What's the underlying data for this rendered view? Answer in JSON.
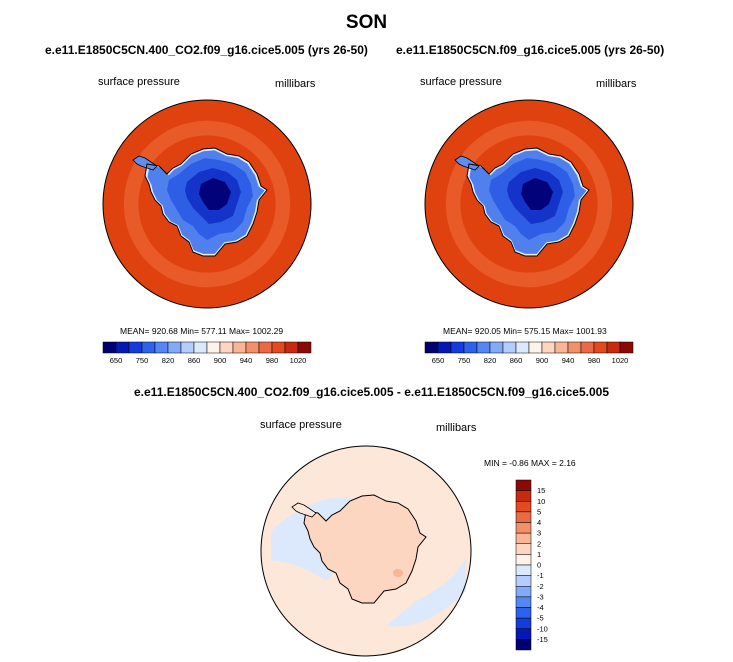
{
  "figure_title": "SON",
  "chart_data": [
    {
      "type": "heatmap",
      "projection": "south-polar-stereographic",
      "title": "e.e11.E1850C5CN.400_CO2.f09_g16.cice5.005 (yrs 26-50)",
      "left_label": "surface pressure",
      "right_label": "millibars",
      "stats_text": "MEAN= 920.68  Min= 577.11  Max= 1002.29",
      "mean": 920.68,
      "min": 577.11,
      "max": 1002.29,
      "colorbar": {
        "orientation": "horizontal",
        "tick_labels": [
          "650",
          "750",
          "820",
          "860",
          "900",
          "940",
          "980",
          "1020"
        ],
        "colors": [
          "#00006e",
          "#0518b4",
          "#143cdc",
          "#2e62ec",
          "#5686f2",
          "#82aaf6",
          "#b4cdfa",
          "#dce9fd",
          "#fff2e8",
          "#fcd6c0",
          "#f9b595",
          "#f2906a",
          "#ea6a45",
          "#e34a20",
          "#c82a10",
          "#8b0a05"
        ]
      }
    },
    {
      "type": "heatmap",
      "projection": "south-polar-stereographic",
      "title": "e.e11.E1850C5CN.f09_g16.cice5.005 (yrs 26-50)",
      "left_label": "surface pressure",
      "right_label": "millibars",
      "stats_text": "MEAN= 920.05  Min= 575.15  Max= 1001.93",
      "mean": 920.05,
      "min": 575.15,
      "max": 1001.93,
      "colorbar": {
        "orientation": "horizontal",
        "tick_labels": [
          "650",
          "750",
          "820",
          "860",
          "900",
          "940",
          "980",
          "1020"
        ],
        "colors": [
          "#00006e",
          "#0518b4",
          "#143cdc",
          "#2e62ec",
          "#5686f2",
          "#82aaf6",
          "#b4cdfa",
          "#dce9fd",
          "#fff2e8",
          "#fcd6c0",
          "#f9b595",
          "#f2906a",
          "#ea6a45",
          "#e34a20",
          "#c82a10",
          "#8b0a05"
        ]
      }
    },
    {
      "type": "heatmap",
      "projection": "south-polar-stereographic",
      "title": "e.e11.E1850C5CN.400_CO2.f09_g16.cice5.005 - e.e11.E1850C5CN.f09_g16.cice5.005",
      "left_label": "surface pressure",
      "right_label": "millibars",
      "stats_text": "MIN =  -0.86 MAX =   2.16",
      "min": -0.86,
      "max": 2.16,
      "colorbar": {
        "orientation": "vertical",
        "tick_labels": [
          "15",
          "10",
          "5",
          "4",
          "3",
          "2",
          "1",
          "0",
          "-1",
          "-2",
          "-3",
          "-4",
          "-5",
          "-10",
          "-15"
        ],
        "colors": [
          "#8b0a05",
          "#c82a10",
          "#e34a20",
          "#ea6a45",
          "#f2906a",
          "#f9b595",
          "#fcd6c0",
          "#fff2e8",
          "#dce9fd",
          "#b4cdfa",
          "#82aaf6",
          "#5686f2",
          "#2e62ec",
          "#143cdc",
          "#0518b4",
          "#00006e"
        ]
      }
    }
  ]
}
